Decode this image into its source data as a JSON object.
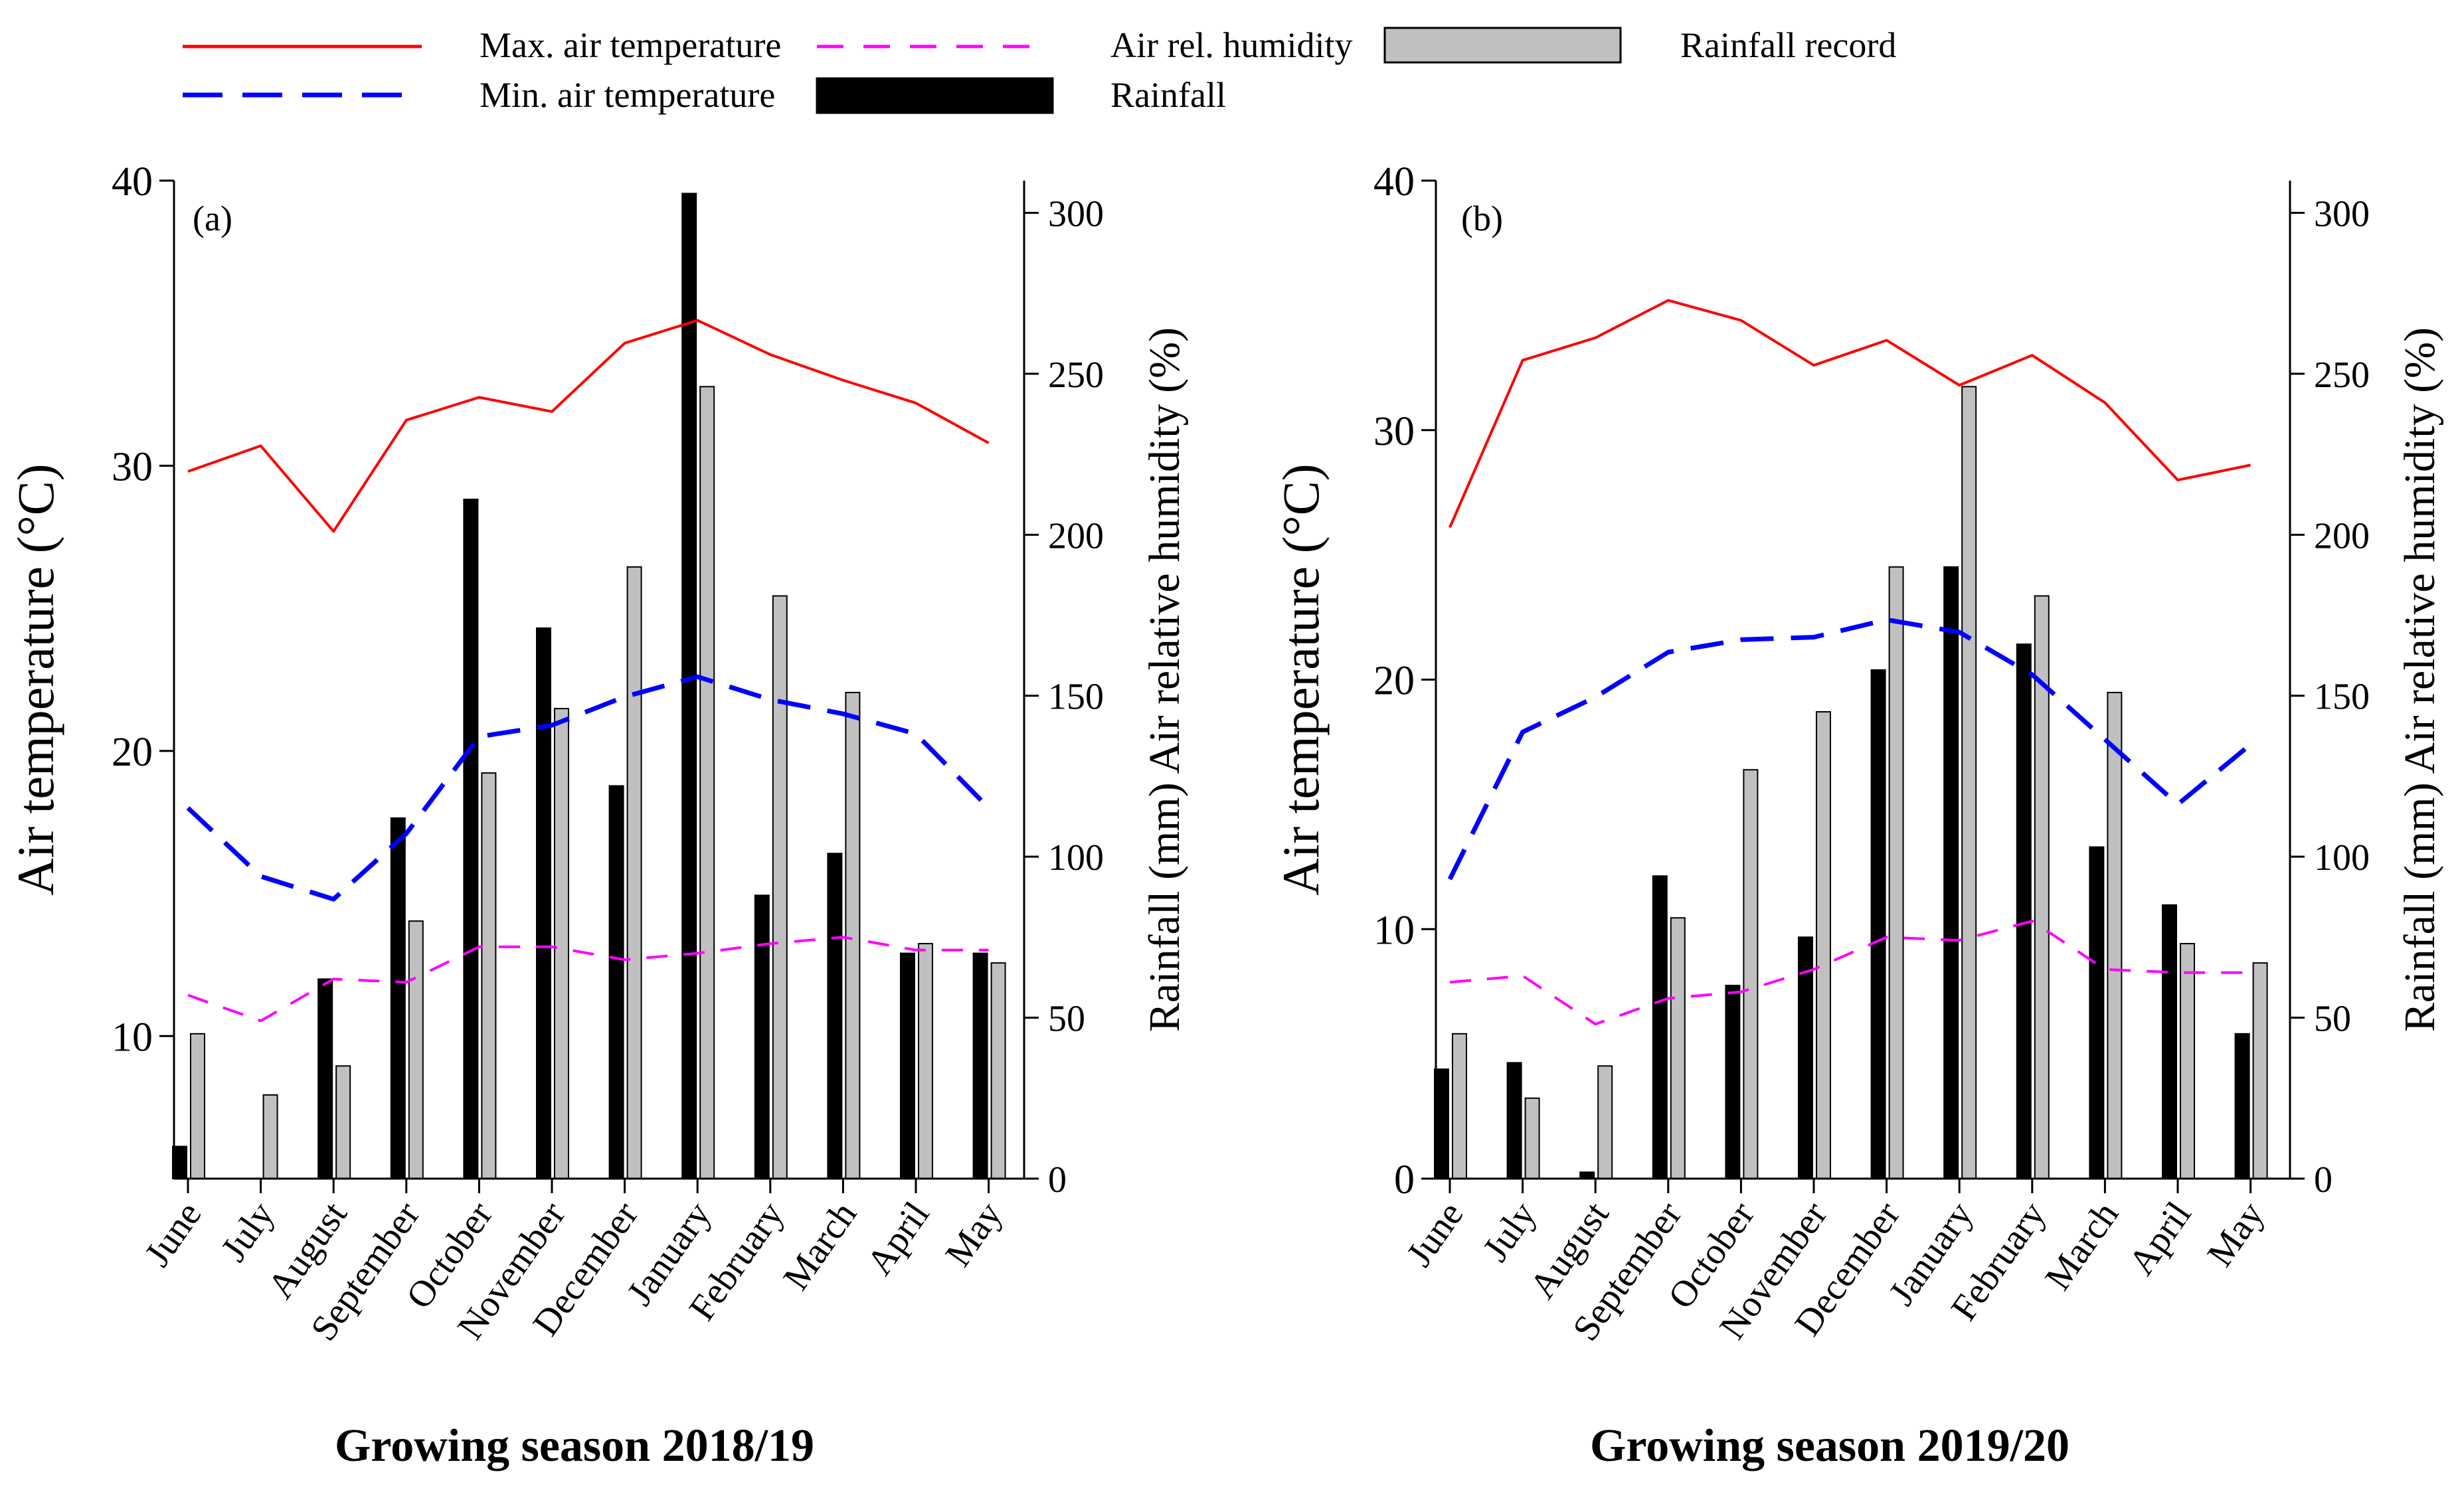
{
  "legend": {
    "items": [
      {
        "id": "max_temp",
        "label": "Max. air temperature",
        "kind": "line",
        "color": "#ff0000",
        "dash": false
      },
      {
        "id": "min_temp",
        "label": "Min. air temperature",
        "kind": "line",
        "color": "#0000ff",
        "dash": true
      },
      {
        "id": "humidity",
        "label": "Air rel. humidity",
        "kind": "line",
        "color": "#ff00ff",
        "dash": true
      },
      {
        "id": "rainfall",
        "label": "Rainfall",
        "kind": "bar",
        "color": "#000000"
      },
      {
        "id": "rainfall_record",
        "label": "Rainfall record",
        "kind": "bar",
        "color": "#c0c0c0"
      }
    ]
  },
  "chart_data": [
    {
      "type": "bar",
      "panel_label": "(a)",
      "title": "Growing season 2018/19",
      "ylabel_left": "Air temperature (°C)",
      "ylabel_right": "Rainfall (mm) Air relative humidity (%)",
      "ylim_left": [
        5,
        40
      ],
      "yticks_left": [
        10,
        20,
        30,
        40
      ],
      "ylim_right": [
        0,
        310
      ],
      "yticks_right": [
        0,
        50,
        100,
        150,
        200,
        250,
        300
      ],
      "categories": [
        "June",
        "July",
        "August",
        "September",
        "October",
        "November",
        "December",
        "January",
        "February",
        "March",
        "April",
        "May"
      ],
      "series": [
        {
          "name": "Max. air temperature",
          "axis": "left",
          "kind": "line",
          "values": [
            29.8,
            30.7,
            27.7,
            31.6,
            32.4,
            31.9,
            34.3,
            35.1,
            33.9,
            33.0,
            32.2,
            30.8
          ]
        },
        {
          "name": "Min. air temperature",
          "axis": "left",
          "kind": "line",
          "values": [
            18.0,
            15.6,
            14.8,
            17.1,
            20.5,
            20.9,
            21.9,
            22.6,
            21.8,
            21.3,
            20.6,
            18.0
          ]
        },
        {
          "name": "Air rel. humidity",
          "axis": "right",
          "kind": "line",
          "values": [
            57,
            49,
            62,
            61,
            72,
            72,
            68,
            70,
            73,
            75,
            71,
            71
          ]
        },
        {
          "name": "Rainfall",
          "axis": "right",
          "kind": "bar",
          "values": [
            10,
            0,
            62,
            112,
            211,
            171,
            122,
            306,
            88,
            101,
            70,
            70
          ]
        },
        {
          "name": "Rainfall record",
          "axis": "right",
          "kind": "bar",
          "values": [
            45,
            26,
            35,
            80,
            126,
            146,
            190,
            246,
            181,
            151,
            73,
            67
          ]
        }
      ]
    },
    {
      "type": "bar",
      "panel_label": "(b)",
      "title": "Growing season 2019/20",
      "ylabel_left": "Air temperature (°C)",
      "ylabel_right": "Rainfall (mm) Air relative humidity (%)",
      "ylim_left": [
        0,
        40
      ],
      "yticks_left": [
        0,
        10,
        20,
        30,
        40
      ],
      "ylim_right": [
        0,
        310
      ],
      "yticks_right": [
        0,
        50,
        100,
        150,
        200,
        250,
        300
      ],
      "categories": [
        "June",
        "July",
        "August",
        "September",
        "October",
        "November",
        "December",
        "January",
        "February",
        "March",
        "April",
        "May"
      ],
      "series": [
        {
          "name": "Max. air temperature",
          "axis": "left",
          "kind": "line",
          "values": [
            26.1,
            32.8,
            33.7,
            35.2,
            34.4,
            32.6,
            33.6,
            31.8,
            33.0,
            31.1,
            28.0,
            28.6
          ]
        },
        {
          "name": "Min. air temperature",
          "axis": "left",
          "kind": "line",
          "values": [
            12.0,
            17.9,
            19.3,
            21.1,
            21.6,
            21.7,
            22.4,
            21.9,
            20.2,
            17.6,
            15.0,
            17.4
          ]
        },
        {
          "name": "Air rel. humidity",
          "axis": "right",
          "kind": "line",
          "values": [
            61,
            63,
            48,
            56,
            58,
            65,
            75,
            74,
            80,
            65,
            64,
            64
          ]
        },
        {
          "name": "Rainfall",
          "axis": "right",
          "kind": "bar",
          "values": [
            34,
            36,
            2,
            94,
            60,
            75,
            158,
            190,
            166,
            103,
            85,
            45
          ]
        },
        {
          "name": "Rainfall record",
          "axis": "right",
          "kind": "bar",
          "values": [
            45,
            25,
            35,
            81,
            127,
            145,
            190,
            246,
            181,
            151,
            73,
            67
          ]
        }
      ]
    }
  ]
}
